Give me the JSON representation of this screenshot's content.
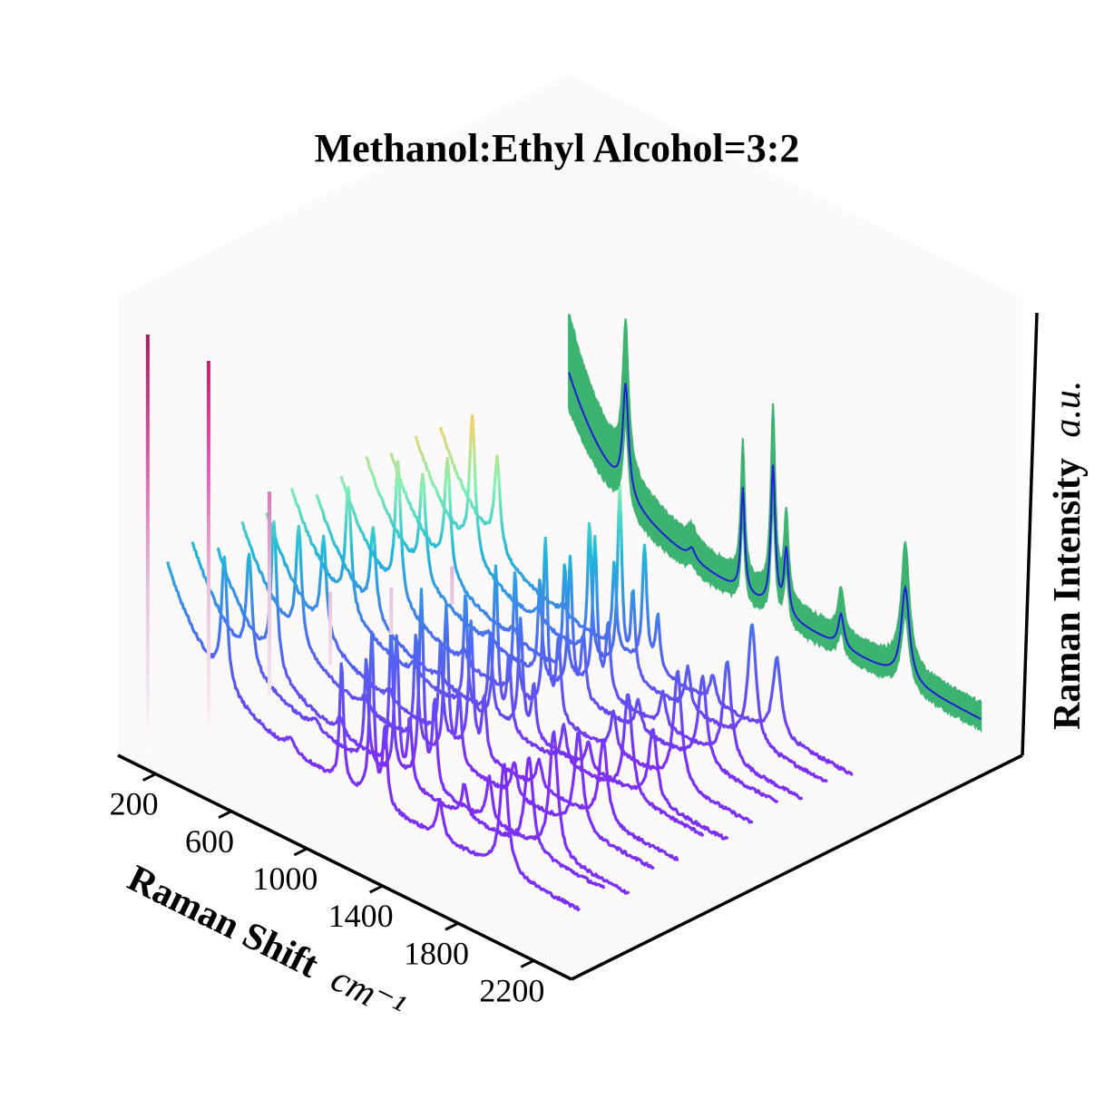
{
  "chart_data": {
    "type": "line",
    "projection": "3d-waterfall",
    "title": "Methanol:Ethyl Alcohol=3:2",
    "xlabel": "Raman Shift",
    "xlabel_unit": "cm⁻¹",
    "zlabel": "Raman Intensity",
    "zlabel_unit": "a.u.",
    "xlim": [
      0,
      2400
    ],
    "x_ticks": [
      200,
      600,
      1000,
      1400,
      1800,
      2200
    ],
    "grid": false,
    "pane_color": "#fcf9fb",
    "mean_color": "#1f1fd6",
    "band_color": "#3cb371",
    "peak_positions": [
      {
        "x": 420,
        "r": 1.0,
        "w": 18
      },
      {
        "x": 770,
        "r": 0.1,
        "w": 22
      },
      {
        "x": 1040,
        "r": 0.95,
        "w": 12
      },
      {
        "x": 1200,
        "r": 1.3,
        "w": 14
      },
      {
        "x": 1270,
        "r": 0.6,
        "w": 14
      },
      {
        "x": 1560,
        "r": 0.3,
        "w": 18
      },
      {
        "x": 1900,
        "r": 0.85,
        "w": 26
      }
    ],
    "series": [
      {
        "baseline": 0.1,
        "scale": 1.05
      },
      {
        "baseline": 0.12,
        "scale": 0.9
      },
      {
        "baseline": 0.08,
        "scale": 1.2
      },
      {
        "baseline": 0.11,
        "scale": 0.95
      },
      {
        "baseline": 0.1,
        "scale": 0.8
      },
      {
        "baseline": 0.13,
        "scale": 1.0
      },
      {
        "baseline": 0.09,
        "scale": 0.7
      },
      {
        "baseline": 0.1,
        "scale": 1.1
      },
      {
        "baseline": 0.12,
        "scale": 0.85
      },
      {
        "baseline": 0.1,
        "scale": 0.95
      },
      {
        "baseline": 0.11,
        "scale": 1.15
      },
      {
        "baseline": 0.1,
        "scale": 0.75
      }
    ]
  }
}
